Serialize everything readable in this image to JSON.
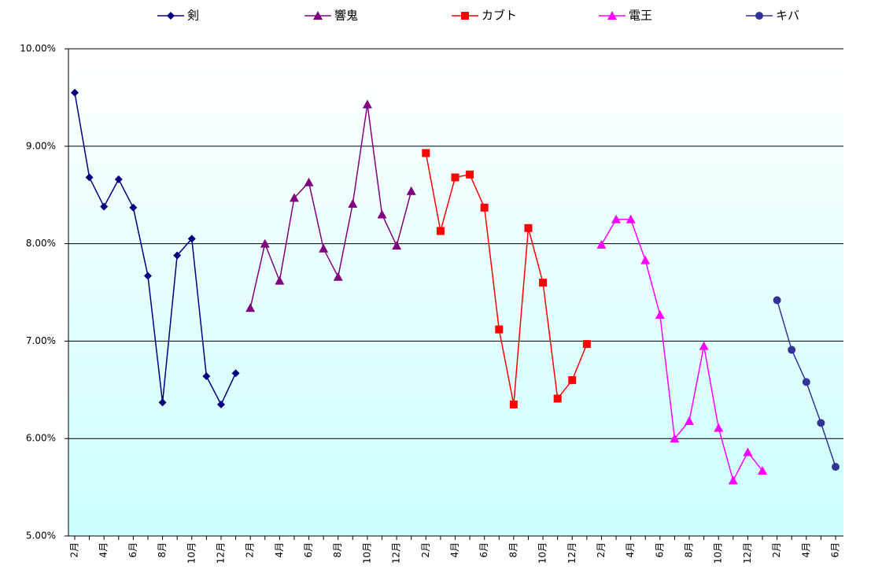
{
  "chart_data": {
    "type": "line",
    "categories": [
      "2月",
      null,
      "4月",
      null,
      "6月",
      null,
      "8月",
      null,
      "10月",
      null,
      "12月",
      null,
      "2月",
      null,
      "4月",
      null,
      "6月",
      null,
      "8月",
      null,
      "10月",
      null,
      "12月",
      null,
      "2月",
      null,
      "4月",
      null,
      "6月",
      null,
      "8月",
      null,
      "10月",
      null,
      "12月",
      null,
      "2月",
      null,
      "4月",
      null,
      "6月",
      null,
      "8月",
      null,
      "10月",
      null,
      "12月",
      null,
      "2月",
      null,
      "4月",
      null,
      "6月"
    ],
    "series": [
      {
        "name": "剣",
        "color": "#000080",
        "marker": "diamond",
        "values": [
          9.55,
          8.68,
          8.38,
          8.66,
          8.37,
          7.67,
          6.37,
          7.88,
          8.05,
          6.64,
          6.35,
          6.67,
          null,
          null,
          null,
          null,
          null,
          null,
          null,
          null,
          null,
          null,
          null,
          null,
          null,
          null,
          null,
          null,
          null,
          null,
          null,
          null,
          null,
          null,
          null,
          null,
          null,
          null,
          null,
          null,
          null,
          null,
          null,
          null,
          null,
          null,
          null,
          null,
          null,
          null,
          null,
          null,
          null
        ]
      },
      {
        "name": "響鬼",
        "color": "#800080",
        "marker": "triangle",
        "values": [
          null,
          null,
          null,
          null,
          null,
          null,
          null,
          null,
          null,
          null,
          null,
          null,
          7.34,
          8.0,
          7.62,
          8.47,
          8.63,
          7.95,
          7.66,
          8.41,
          9.43,
          8.3,
          7.98,
          8.54,
          null,
          null,
          null,
          null,
          null,
          null,
          null,
          null,
          null,
          null,
          null,
          null,
          null,
          null,
          null,
          null,
          null,
          null,
          null,
          null,
          null,
          null,
          null,
          null,
          null,
          null,
          null,
          null,
          null
        ]
      },
      {
        "name": "カブト",
        "color": "#ff0000",
        "marker": "square",
        "values": [
          null,
          null,
          null,
          null,
          null,
          null,
          null,
          null,
          null,
          null,
          null,
          null,
          null,
          null,
          null,
          null,
          null,
          null,
          null,
          null,
          null,
          null,
          null,
          null,
          8.93,
          8.13,
          8.68,
          8.71,
          8.37,
          7.12,
          6.35,
          8.16,
          7.6,
          6.41,
          6.6,
          6.97,
          null,
          null,
          null,
          null,
          null,
          null,
          null,
          null,
          null,
          null,
          null,
          null,
          null,
          null,
          null,
          null,
          null
        ]
      },
      {
        "name": "電王",
        "color": "#ff00ff",
        "marker": "triangle",
        "values": [
          null,
          null,
          null,
          null,
          null,
          null,
          null,
          null,
          null,
          null,
          null,
          null,
          null,
          null,
          null,
          null,
          null,
          null,
          null,
          null,
          null,
          null,
          null,
          null,
          null,
          null,
          null,
          null,
          null,
          null,
          null,
          null,
          null,
          null,
          null,
          null,
          7.99,
          8.25,
          8.25,
          7.83,
          7.27,
          6.0,
          6.18,
          6.95,
          6.11,
          5.57,
          5.86,
          5.67,
          null,
          null,
          null,
          null,
          null
        ]
      },
      {
        "name": "キバ",
        "color": "#333399",
        "marker": "circle",
        "values": [
          null,
          null,
          null,
          null,
          null,
          null,
          null,
          null,
          null,
          null,
          null,
          null,
          null,
          null,
          null,
          null,
          null,
          null,
          null,
          null,
          null,
          null,
          null,
          null,
          null,
          null,
          null,
          null,
          null,
          null,
          null,
          null,
          null,
          null,
          null,
          null,
          null,
          null,
          null,
          null,
          null,
          null,
          null,
          null,
          null,
          null,
          null,
          null,
          7.42,
          6.91,
          6.58,
          6.16,
          5.71
        ]
      }
    ],
    "ylim": [
      5,
      10
    ],
    "yticks": [
      {
        "value": 5,
        "label": "5.00%"
      },
      {
        "value": 6,
        "label": "6.00%"
      },
      {
        "value": 7,
        "label": "7.00%"
      },
      {
        "value": 8,
        "label": "8.00%"
      },
      {
        "value": 9,
        "label": "9.00%"
      },
      {
        "value": 10,
        "label": "10.00%"
      }
    ],
    "grid": true,
    "legend": "top"
  }
}
